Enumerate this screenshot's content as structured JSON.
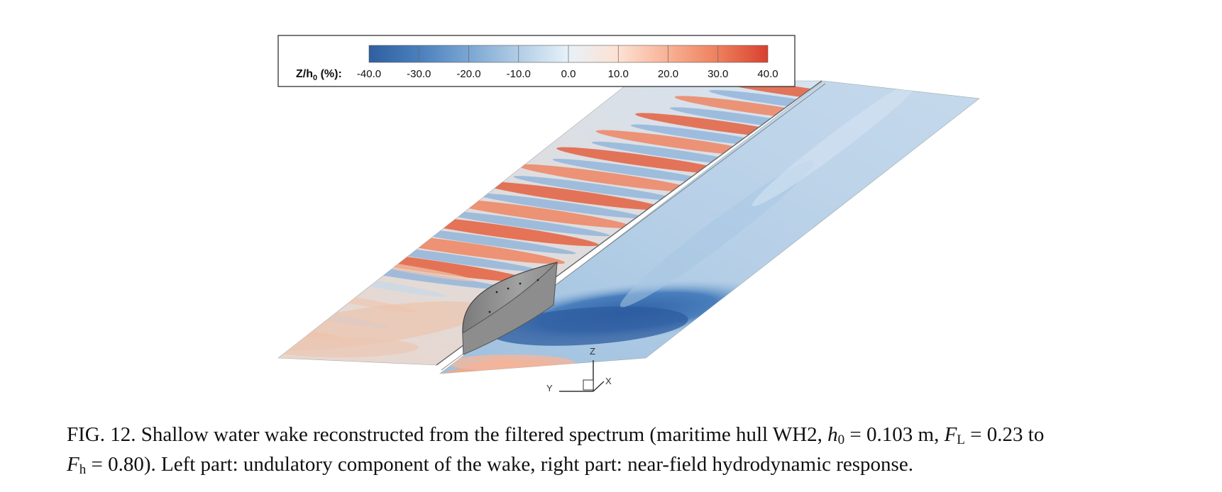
{
  "figure": {
    "colorbar": {
      "title_main": "Z/h",
      "title_sub": "0",
      "title_unit": " (%):",
      "ticks": [
        "-40.0",
        "-30.0",
        "-20.0",
        "-10.0",
        "0.0",
        "10.0",
        "20.0",
        "30.0",
        "40.0"
      ],
      "range": [
        -40,
        40
      ],
      "colors": [
        "#2f5f9e",
        "#4a7fbd",
        "#7aa6d2",
        "#b1cde6",
        "#e7f1f8",
        "#fde1d2",
        "#f8b195",
        "#ee7f5c",
        "#d8412f"
      ]
    },
    "axes_triad": {
      "z": "Z",
      "y": "Y",
      "x": "X"
    },
    "hull_color": "#8c8c8c"
  },
  "caption": {
    "fig_label": "FIG. 12.",
    "seg1": "  Shallow water wake reconstructed from the filtered spectrum (maritime hull WH2, ",
    "h_sym": "h",
    "h_sub": "0",
    "h_val": " = 0.103 m, ",
    "fl_sym": "F",
    "fl_sub": "L",
    "fl_val": " = 0.23 to",
    "fh_sym": "F",
    "fh_sub": "h",
    "seg2": " = 0.80). Left part: undulatory component of the wake, right part: near-field hydrodynamic response."
  }
}
